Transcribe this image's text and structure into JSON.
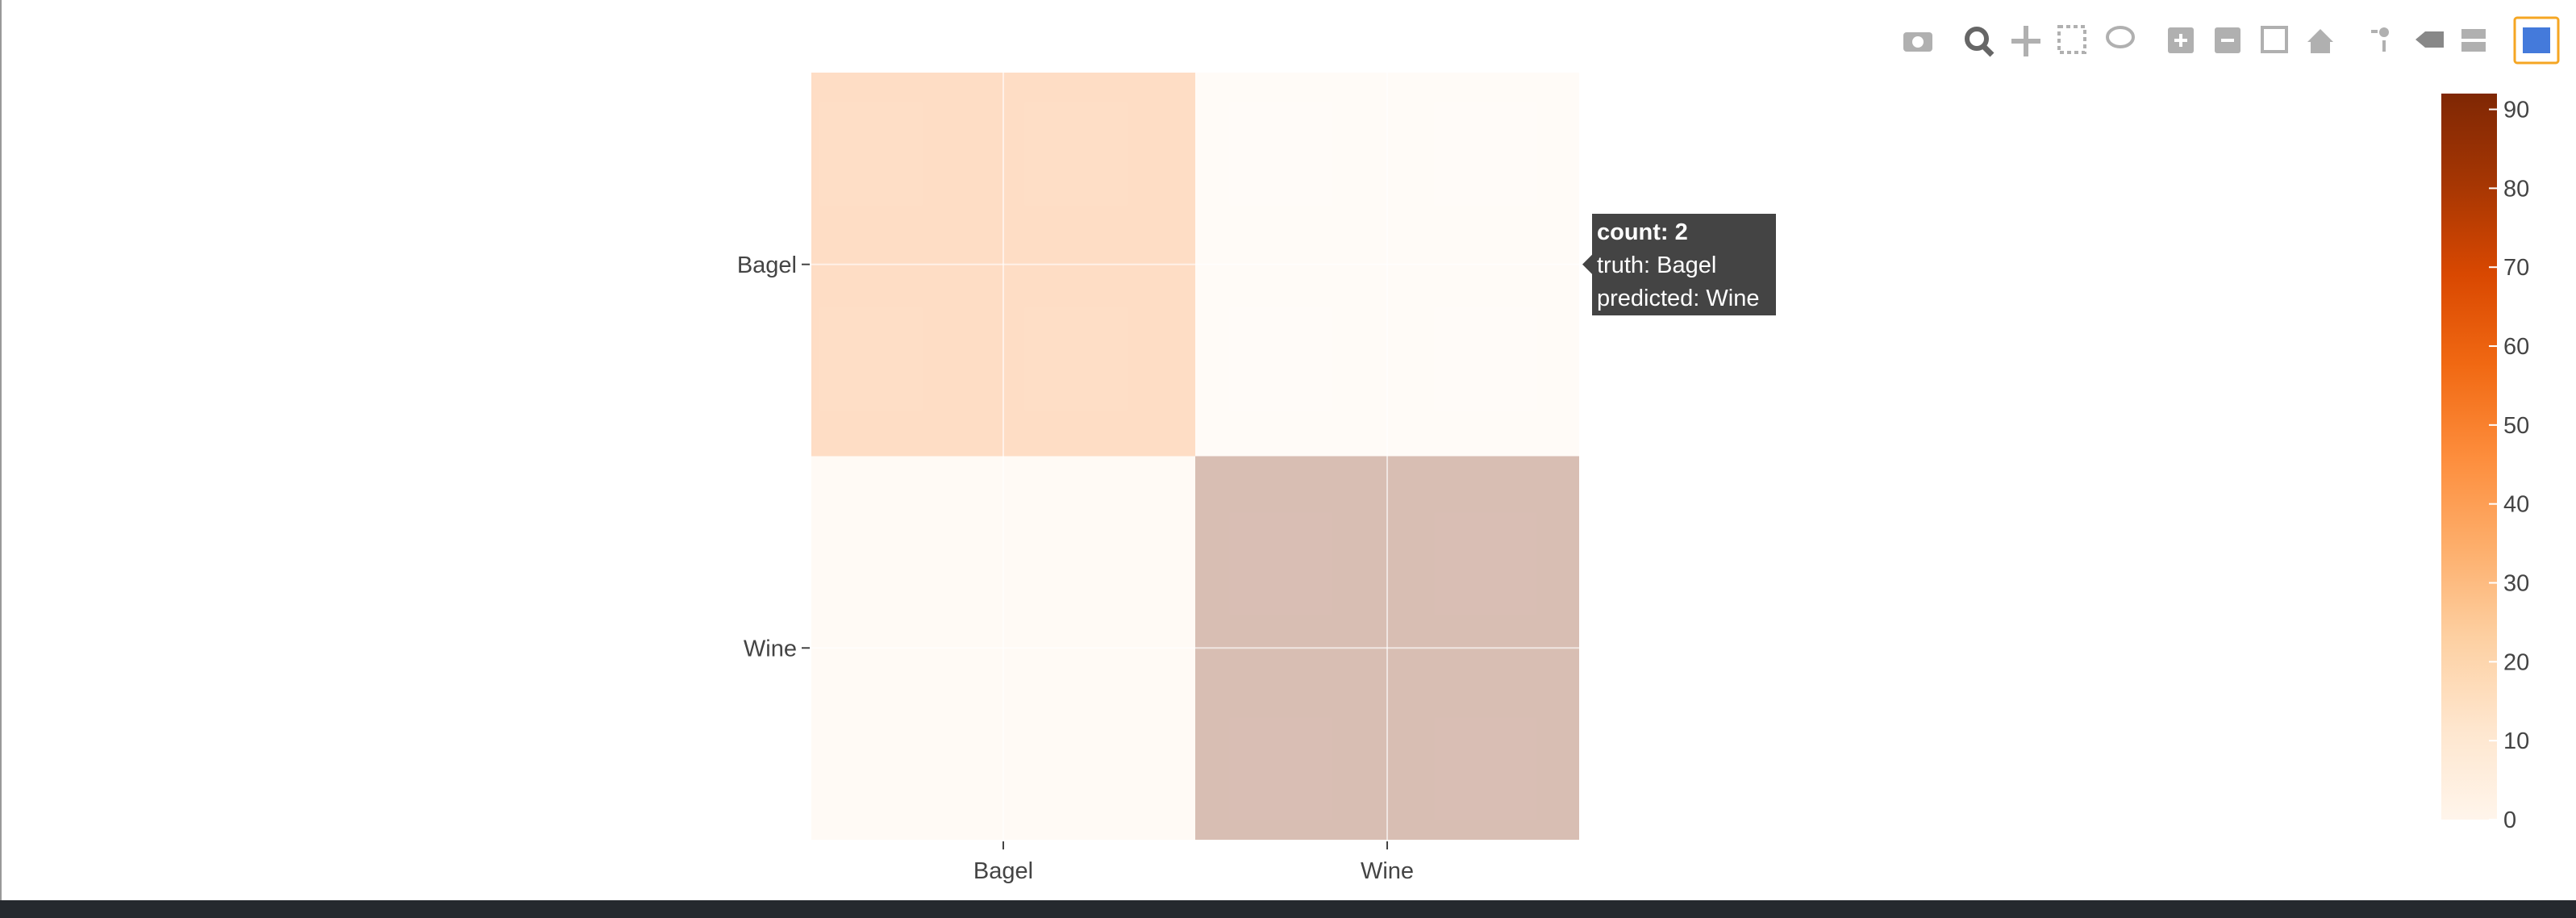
{
  "chart_data": {
    "type": "heatmap",
    "x": [
      "Bagel",
      "Wine"
    ],
    "y": [
      "Bagel",
      "Wine"
    ],
    "z": [
      [
        45,
        2
      ],
      [
        5,
        93
      ]
    ],
    "colorscale": [
      [
        0,
        "#fff5eb"
      ],
      [
        0.125,
        "#fee6ce"
      ],
      [
        0.25,
        "#fdd0a2"
      ],
      [
        0.375,
        "#fdae6b"
      ],
      [
        0.5,
        "#fd8d3c"
      ],
      [
        0.625,
        "#f16913"
      ],
      [
        0.75,
        "#d94801"
      ],
      [
        0.875,
        "#a63603"
      ],
      [
        1,
        "#7f2704"
      ]
    ],
    "opacity": 0.3,
    "zlim": [
      0,
      92
    ],
    "colorbar_ticks": [
      0,
      10,
      20,
      30,
      40,
      50,
      60,
      70,
      80,
      90
    ],
    "grid": true,
    "tooltip": [
      "count: 2",
      "truth: Bagel",
      "predicted: Wine"
    ]
  }
}
